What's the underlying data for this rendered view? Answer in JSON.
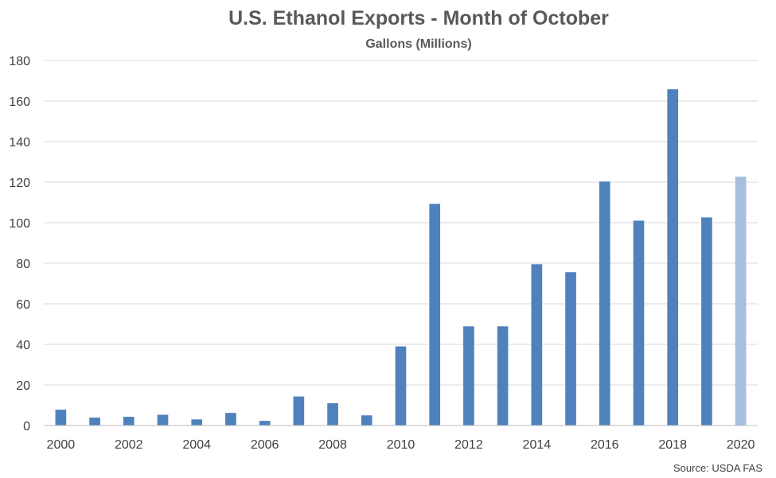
{
  "chart_data": {
    "type": "bar",
    "title": "U.S. Ethanol Exports - Month of October",
    "subtitle": "Gallons (Millions)",
    "source": "Source: USDA FAS",
    "categories": [
      "2000",
      "2001",
      "2002",
      "2003",
      "2004",
      "2005",
      "2006",
      "2007",
      "2008",
      "2009",
      "2010",
      "2011",
      "2012",
      "2013",
      "2014",
      "2015",
      "2016",
      "2017",
      "2018",
      "2019",
      "2020"
    ],
    "values": [
      7.8,
      3.9,
      4.3,
      5.3,
      3.0,
      6.2,
      2.3,
      14.3,
      11.0,
      5.0,
      39.0,
      109.3,
      48.9,
      48.9,
      79.5,
      75.6,
      120.3,
      101.0,
      165.8,
      102.6,
      122.7
    ],
    "highlight_index": 20,
    "colors": {
      "bar": "#4f81bd",
      "highlight": "#a6bfdf"
    },
    "xtick_labels": [
      "2000",
      "2002",
      "2004",
      "2006",
      "2008",
      "2010",
      "2012",
      "2014",
      "2016",
      "2018",
      "2020"
    ],
    "yticks": [
      0,
      20,
      40,
      60,
      80,
      100,
      120,
      140,
      160,
      180
    ],
    "ylim": [
      0,
      180
    ],
    "grid": true,
    "legend": false
  }
}
